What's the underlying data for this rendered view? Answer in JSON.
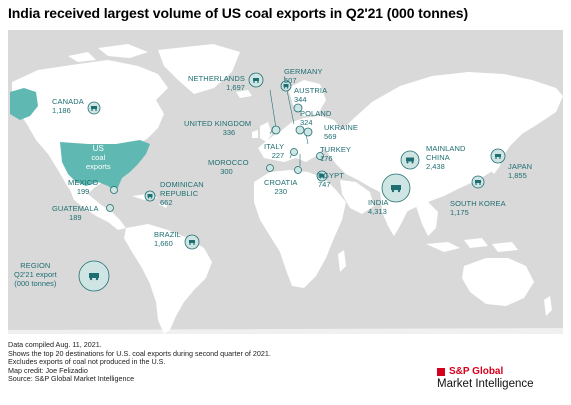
{
  "title": "India received largest volume of US coal exports in Q2'21 (000 tonnes)",
  "map": {
    "origin": {
      "name": "US",
      "sub1": "coal",
      "sub2": "exports"
    },
    "legend": {
      "line1": "REGION",
      "line2": "Q2'21 export",
      "line3": "(000 tonnes)"
    },
    "destinations": [
      {
        "key": "canada",
        "name": "CANADA",
        "value": "1,186"
      },
      {
        "key": "netherlands",
        "name": "NETHERLANDS",
        "value": "1,697"
      },
      {
        "key": "germany",
        "name": "GERMANY",
        "value": "507"
      },
      {
        "key": "austria",
        "name": "AUSTRIA",
        "value": "344"
      },
      {
        "key": "poland",
        "name": "POLAND",
        "value": "324"
      },
      {
        "key": "ukraine",
        "name": "UKRAINE",
        "value": "569"
      },
      {
        "key": "uk",
        "name": "UNITED KINGDOM",
        "value": "336"
      },
      {
        "key": "italy",
        "name": "ITALY",
        "value": "227"
      },
      {
        "key": "turkey",
        "name": "TURKEY",
        "value": "176"
      },
      {
        "key": "morocco",
        "name": "MOROCCO",
        "value": "300"
      },
      {
        "key": "egypt",
        "name": "EGYPT",
        "value": "747"
      },
      {
        "key": "croatia",
        "name": "CROATIA",
        "value": "230"
      },
      {
        "key": "mexico",
        "name": "MEXICO",
        "value": "199"
      },
      {
        "key": "dominican",
        "name1": "DOMINICAN",
        "name2": "REPUBLIC",
        "value": "662"
      },
      {
        "key": "guatemala",
        "name": "GUATEMALA",
        "value": "189"
      },
      {
        "key": "brazil",
        "name": "BRAZIL",
        "value": "1,660"
      },
      {
        "key": "china",
        "name1": "MAINLAND",
        "name2": "CHINA",
        "value": "2,438"
      },
      {
        "key": "japan",
        "name": "JAPAN",
        "value": "1,855"
      },
      {
        "key": "korea",
        "name": "SOUTH KOREA",
        "value": "1,175"
      },
      {
        "key": "india",
        "name": "INDIA",
        "value": "4,313"
      }
    ],
    "colors": {
      "ocean": "#d9d9d9",
      "land": "#ffffff",
      "us": "#5fb8b1",
      "accent": "#1f6e72",
      "bubble": "#cfe5e3"
    },
    "icon": "coal-cart-icon"
  },
  "footer": [
    "Data compiled Aug. 11, 2021.",
    "Shows the top 20 destinations for U.S. coal exports during second quarter of 2021.",
    "Excludes exports of coal not produced in the U.S.",
    "Map credit: Joe Felizadio",
    "Source: S&P Global Market Intelligence"
  ],
  "brand": {
    "name": "S&P Global",
    "sub": "Market Intelligence"
  }
}
